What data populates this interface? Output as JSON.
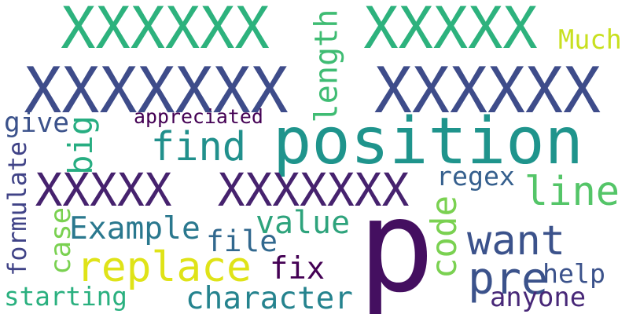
{
  "word_cloud": {
    "words": [
      {
        "text": "XXXXXX",
        "color": "#2db27d",
        "orientation": "horizontal"
      },
      {
        "text": "XXXXX",
        "color": "#2db27d",
        "orientation": "horizontal"
      },
      {
        "text": "XXXXXXX",
        "color": "#3e4c8a",
        "orientation": "horizontal"
      },
      {
        "text": "XXXXXX",
        "color": "#3e4c8a",
        "orientation": "horizontal"
      },
      {
        "text": "position",
        "color": "#1f948c",
        "orientation": "horizontal"
      },
      {
        "text": "p",
        "color": "#440f60",
        "orientation": "horizontal"
      },
      {
        "text": "XXXXX",
        "color": "#46226e",
        "orientation": "horizontal"
      },
      {
        "text": "XXXXXXX",
        "color": "#46226e",
        "orientation": "horizontal"
      },
      {
        "text": "replace",
        "color": "#dfe318",
        "orientation": "horizontal"
      },
      {
        "text": "find",
        "color": "#21908c",
        "orientation": "horizontal"
      },
      {
        "text": "line",
        "color": "#54c568",
        "orientation": "horizontal"
      },
      {
        "text": "want",
        "color": "#3b528b",
        "orientation": "horizontal"
      },
      {
        "text": "pre",
        "color": "#3b528b",
        "orientation": "horizontal"
      },
      {
        "text": "code",
        "color": "#7ad151",
        "orientation": "vertical"
      },
      {
        "text": "length",
        "color": "#3fbc73",
        "orientation": "vertical"
      },
      {
        "text": "Much",
        "color": "#c8e020",
        "orientation": "horizontal"
      },
      {
        "text": "appreciated",
        "color": "#440154",
        "orientation": "horizontal"
      },
      {
        "text": "give",
        "color": "#3b528b",
        "orientation": "horizontal"
      },
      {
        "text": "big",
        "color": "#27ad81",
        "orientation": "vertical"
      },
      {
        "text": "formulate",
        "color": "#404387",
        "orientation": "vertical"
      },
      {
        "text": "case",
        "color": "#7ad151",
        "orientation": "vertical"
      },
      {
        "text": "Example",
        "color": "#2a788e",
        "orientation": "horizontal"
      },
      {
        "text": "value",
        "color": "#2ea37c",
        "orientation": "horizontal"
      },
      {
        "text": "file",
        "color": "#31688e",
        "orientation": "horizontal"
      },
      {
        "text": "regex",
        "color": "#355f8d",
        "orientation": "horizontal"
      },
      {
        "text": "fix",
        "color": "#440154",
        "orientation": "horizontal"
      },
      {
        "text": "help",
        "color": "#3b528b",
        "orientation": "horizontal"
      },
      {
        "text": "anyone",
        "color": "#482878",
        "orientation": "horizontal"
      },
      {
        "text": "starting",
        "color": "#2ab07f",
        "orientation": "horizontal"
      },
      {
        "text": "character",
        "color": "#25838e",
        "orientation": "horizontal"
      }
    ]
  }
}
